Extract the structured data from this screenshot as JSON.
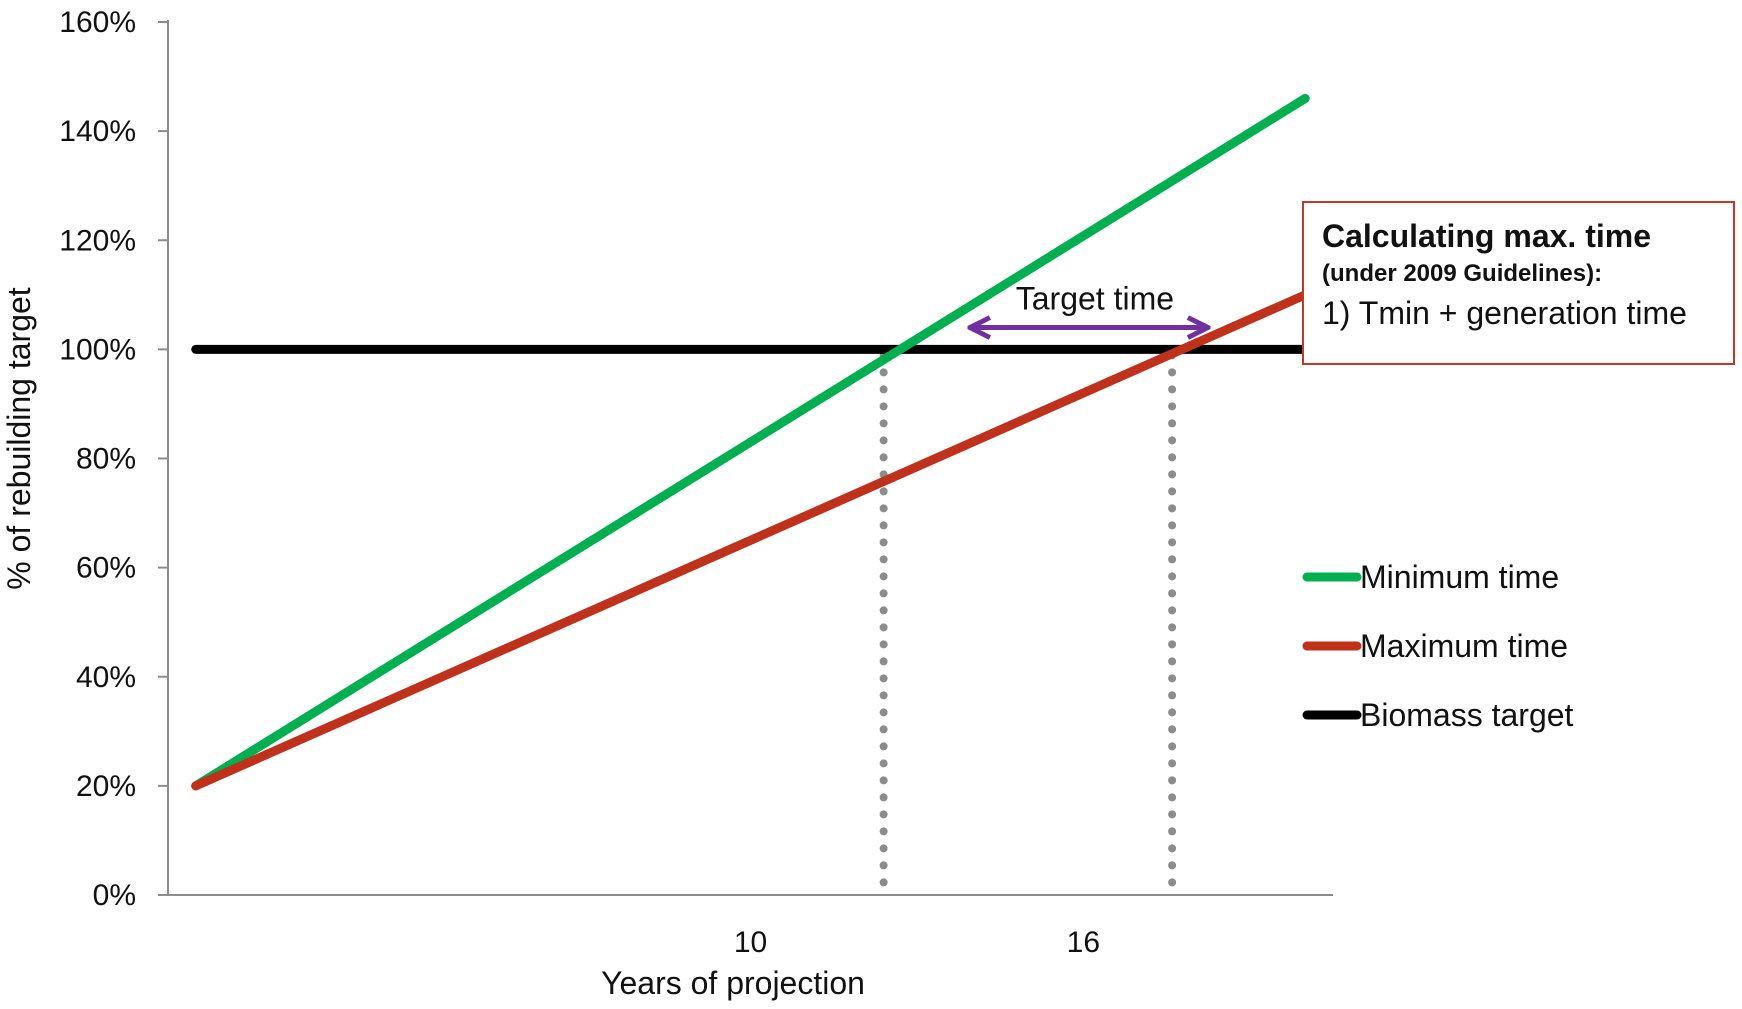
{
  "chart_data": {
    "type": "line",
    "title": "",
    "xlabel": "Years of projection",
    "ylabel": "% of rebuilding target",
    "xlim": [
      -0.5,
      20.5
    ],
    "ylim": [
      0,
      160
    ],
    "y_ticks": [
      0,
      20,
      40,
      60,
      80,
      100,
      120,
      140,
      160
    ],
    "y_tick_suffix": "%",
    "x_ticks": [
      {
        "value": 10,
        "label": "10"
      },
      {
        "value": 16,
        "label": "16"
      }
    ],
    "grid": false,
    "legend_position": "right",
    "series": [
      {
        "name": "Minimum time",
        "color": "#00b050",
        "x": [
          0,
          20
        ],
        "y": [
          20,
          146
        ]
      },
      {
        "name": "Maximum time",
        "color": "#c0311c",
        "x": [
          0,
          20
        ],
        "y": [
          20,
          110
        ]
      },
      {
        "name": "Biomass target",
        "color": "#000000",
        "x": [
          0,
          20
        ],
        "y": [
          100,
          100
        ]
      }
    ],
    "reference_lines": [
      {
        "x": 12.4,
        "style": "dotted",
        "color": "#8c8c8c"
      },
      {
        "x": 17.6,
        "style": "dotted",
        "color": "#8c8c8c"
      }
    ],
    "annotations": [
      {
        "text": "Target time",
        "x_from": 14.0,
        "x_to": 18.2,
        "y": 104,
        "arrow_color": "#7030a0"
      }
    ]
  },
  "info_box": {
    "title": "Calculating max. time",
    "subtitle": "(under 2009 Guidelines):",
    "item": "1) Tmin + generation time",
    "border_color": "#c0392b"
  }
}
